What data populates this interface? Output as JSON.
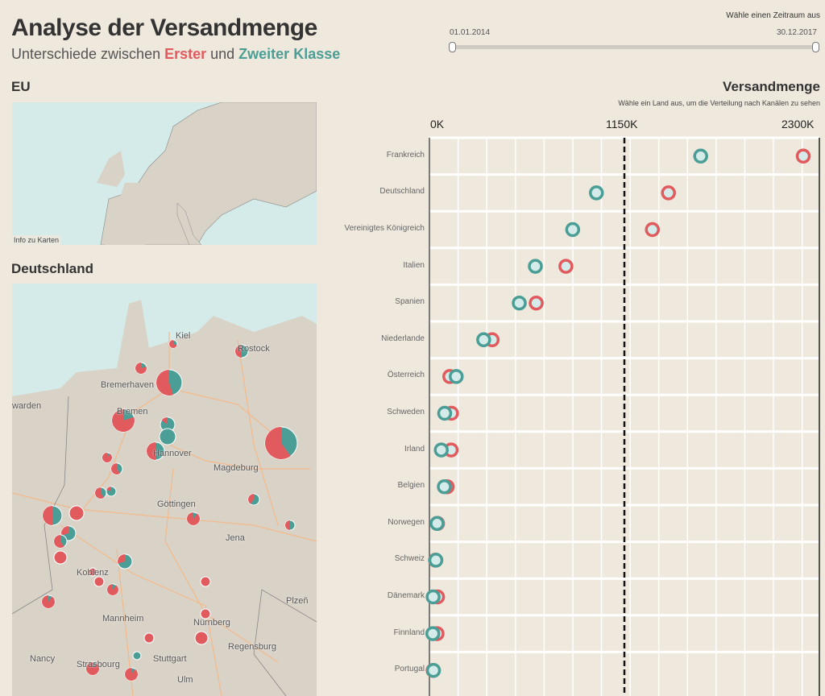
{
  "header": {
    "title": "Analyse der Versandmenge",
    "subtitle_prefix": "Unterschiede zwischen ",
    "first_class": "Erster",
    "subtitle_mid": " und ",
    "second_class": "Zweiter Klasse"
  },
  "date_filter": {
    "label": "Wähle einen Zeitraum aus",
    "start": "01.01.2014",
    "end": "30.12.2017",
    "range_fraction": [
      0,
      1
    ]
  },
  "colors": {
    "first_class": "#e05a5e",
    "second_class": "#4a9e96",
    "background": "#efe8dd",
    "water": "#d4ebe9",
    "land": "#d9d2c7"
  },
  "eu_map": {
    "title": "EU",
    "info": "Info zu Karten"
  },
  "de_map": {
    "title": "Deutschland",
    "labels": [
      "Kiel",
      "Rostock",
      "Bremerhaven",
      "warden",
      "Bremen",
      "Hannover",
      "Magdeburg",
      "Göttingen",
      "Jena",
      "Koblenz",
      "Mannheim",
      "Nürnberg",
      "Plzeň",
      "Regensburg",
      "Nancy",
      "Strasbourg",
      "Stuttgart",
      "Ulm"
    ]
  },
  "chart_data": {
    "type": "dot",
    "title": "Versandmenge",
    "subtitle": "Wähle ein Land aus, um die Verteilung nach Kanälen zu sehen",
    "xlim": [
      0,
      2300
    ],
    "x_ticks": [
      "0K",
      "1150K",
      "2300K"
    ],
    "reference_line": 1150,
    "grid": true,
    "categories": [
      "Frankreich",
      "Deutschland",
      "Vereinigtes Königreich",
      "Italien",
      "Spanien",
      "Niederlande",
      "Österreich",
      "Schweden",
      "Irland",
      "Belgien",
      "Norwegen",
      "Schweiz",
      "Dänemark",
      "Finnland",
      "Portugal"
    ],
    "series": [
      {
        "name": "Erster",
        "values": [
          2205,
          1410,
          1315,
          805,
          630,
          370,
          120,
          130,
          128,
          105,
          48,
          36,
          48,
          45,
          22
        ]
      },
      {
        "name": "Zweiter Klasse",
        "values": [
          1600,
          985,
          845,
          625,
          530,
          320,
          158,
          90,
          70,
          88,
          45,
          38,
          22,
          20,
          24
        ]
      }
    ]
  }
}
